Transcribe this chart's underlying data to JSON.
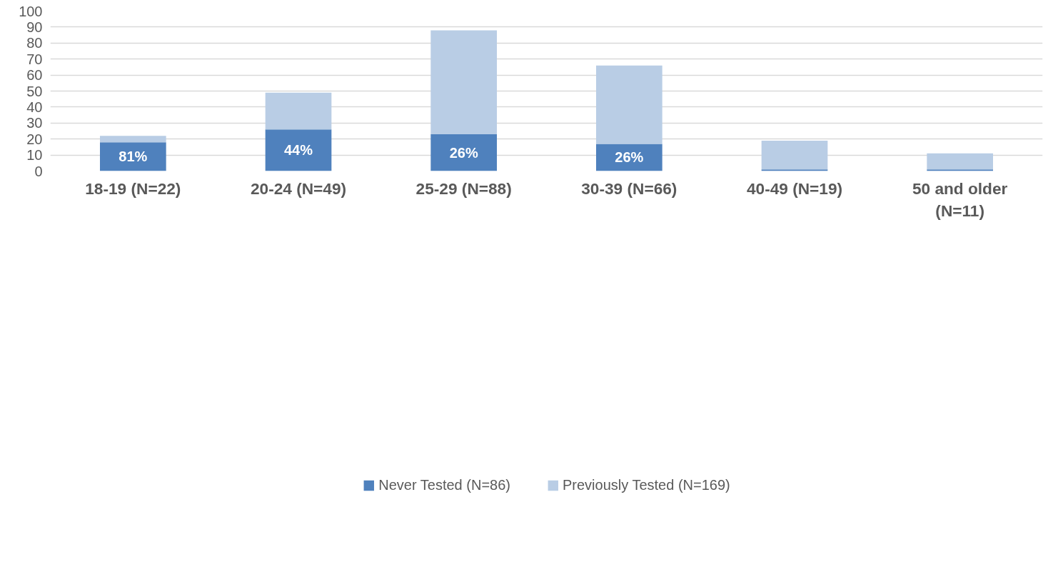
{
  "chart_data": {
    "type": "bar",
    "stacked": true,
    "categories": [
      "18-19 (N=22)",
      "20-24 (N=49)",
      "25-29 (N=88)",
      "30-39 (N=66)",
      "40-49 (N=19)",
      "50 and older (N=11)"
    ],
    "series": [
      {
        "name": "Never Tested (N=86)",
        "color": "#4f81bd",
        "values": [
          18,
          26,
          23,
          17,
          1,
          1
        ]
      },
      {
        "name": "Previously Tested (N=169)",
        "color": "#b9cde5",
        "values": [
          4,
          23,
          65,
          49,
          18,
          10
        ]
      }
    ],
    "ylim": [
      0,
      100
    ],
    "yticks": [
      0,
      10,
      20,
      30,
      40,
      50,
      60,
      70,
      80,
      90,
      100
    ],
    "grid": "y",
    "legend": "bottom",
    "annotations": [
      "81%",
      "44%",
      "26%",
      "26%"
    ]
  }
}
